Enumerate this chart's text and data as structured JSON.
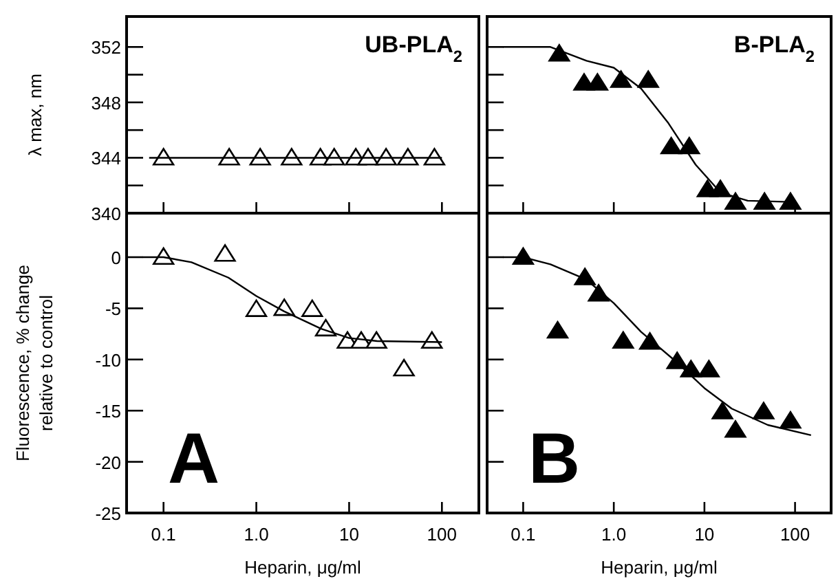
{
  "chart_data": [
    {
      "type": "scatter",
      "title": "UB-PLA$_{2}$",
      "ylabel": "λ max, nm",
      "xlim": [
        0.04,
        250
      ],
      "xticks": [
        {
          "value": 0.1,
          "label": null
        },
        {
          "value": 1,
          "label": null
        },
        {
          "value": 10,
          "label": null
        },
        {
          "value": 100,
          "label": null
        }
      ],
      "ylim": [
        340,
        354.2
      ],
      "yticks": [
        340,
        {
          "value": 342,
          "label": null
        },
        344,
        {
          "value": 346,
          "label": null
        },
        348,
        {
          "value": 350,
          "label": null
        },
        352
      ],
      "log": "x",
      "tick_labels": "y",
      "series": [
        {
          "marker": "triangle",
          "color": "#ffffff",
          "x": [
            0.1,
            0.51,
            1.1,
            2.4,
            4.9,
            6.9,
            11.8,
            16,
            25,
            43,
            83
          ],
          "values": [
            344,
            344,
            344,
            344,
            344,
            344,
            344,
            344,
            344,
            344,
            344
          ]
        },
        {
          "type": "line",
          "line_style": "solid",
          "color": "#000000",
          "x": [
            0.07,
            100
          ],
          "values": [
            344,
            344
          ]
        }
      ]
    },
    {
      "type": "scatter",
      "title": "B-PLA$_{2}$",
      "xlim": [
        0.04,
        250
      ],
      "xticks": [
        {
          "value": 0.1,
          "label": null
        },
        {
          "value": 1,
          "label": null
        },
        {
          "value": 10,
          "label": null
        },
        {
          "value": 100,
          "label": null
        }
      ],
      "ylim": [
        340,
        354.2
      ],
      "yticks": [
        340,
        {
          "value": 342,
          "label": null
        },
        344,
        {
          "value": 346,
          "label": null
        },
        348,
        {
          "value": 350,
          "label": null
        },
        352
      ],
      "log": "x",
      "tick_labels": false,
      "series": [
        {
          "marker": "triangle",
          "color": "#000000",
          "x": [
            0.25,
            0.47,
            0.66,
            1.2,
            2.4,
            4.3,
            6.8,
            10.8,
            15,
            22,
            46,
            89
          ],
          "values": [
            351.5,
            349.4,
            349.4,
            349.6,
            349.6,
            344.8,
            344.8,
            341.7,
            341.7,
            340.8,
            340.8,
            340.8
          ]
        },
        {
          "type": "line",
          "line_style": "solid",
          "color": "#000000",
          "x": [
            0.06,
            0.2,
            0.5,
            1,
            2,
            4,
            8,
            15,
            30,
            100
          ],
          "values": [
            352,
            352,
            351,
            350.5,
            349,
            346.5,
            343.5,
            341.5,
            340.9,
            340.8
          ]
        }
      ]
    },
    {
      "type": "scatter",
      "ylabel": "Fluorescence, % change\nrelative to control",
      "xlabel": "Heparin, μg/ml",
      "annotations": [
        "A"
      ],
      "xlim": [
        0.04,
        250
      ],
      "xticks": [
        0.1,
        {
          "value": 1,
          "label": "1.0"
        },
        10,
        100
      ],
      "ylim": [
        -25,
        4.3
      ],
      "yticks": [
        0,
        -5,
        -10,
        -15,
        -20,
        -25
      ],
      "log": "x",
      "series": [
        {
          "marker": "triangle",
          "color": "#ffffff",
          "x": [
            0.1,
            0.46,
            1.0,
            2.0,
            4.0,
            5.6,
            9.6,
            13.5,
            19.7,
            39,
            78
          ],
          "values": [
            0,
            0.3,
            -5.1,
            -5.0,
            -5.1,
            -7.0,
            -8.2,
            -8.2,
            -8.2,
            -10.9,
            -8.2
          ]
        },
        {
          "type": "line",
          "line_style": "solid",
          "color": "#000000",
          "x": [
            0.06,
            0.1,
            0.2,
            0.5,
            1,
            2,
            5,
            10,
            20,
            100
          ],
          "values": [
            0,
            0,
            -0.5,
            -2,
            -3.8,
            -5.3,
            -7,
            -7.9,
            -8.2,
            -8.3
          ]
        }
      ]
    },
    {
      "type": "scatter",
      "xlabel": "Heparin, μg/ml",
      "annotations": [
        "B"
      ],
      "xlim": [
        0.04,
        250
      ],
      "xticks": [
        0.1,
        {
          "value": 1,
          "label": "1.0"
        },
        10,
        100
      ],
      "ylim": [
        -25,
        4.3
      ],
      "yticks": [
        0,
        -5,
        -10,
        -15,
        -20,
        -25
      ],
      "log": "x",
      "tick_labels": "x",
      "series": [
        {
          "marker": "triangle",
          "color": "#000000",
          "x": [
            0.1,
            0.24,
            0.48,
            0.68,
            1.27,
            2.5,
            5.0,
            7.1,
            11.2,
            15.8,
            22,
            45,
            89
          ],
          "values": [
            0,
            -7.2,
            -2.0,
            -3.6,
            -8.2,
            -8.3,
            -10.2,
            -11.0,
            -11.0,
            -15.1,
            -16.9,
            -15.1,
            -16.0
          ]
        },
        {
          "type": "line",
          "line_style": "solid",
          "color": "#000000",
          "x": [
            0.06,
            0.1,
            0.2,
            0.5,
            1,
            2,
            5,
            10,
            20,
            50,
            150
          ],
          "values": [
            0,
            0,
            -0.7,
            -2.2,
            -4.5,
            -7.3,
            -10.3,
            -12.8,
            -14.8,
            -16.4,
            -17.4
          ]
        }
      ]
    }
  ]
}
